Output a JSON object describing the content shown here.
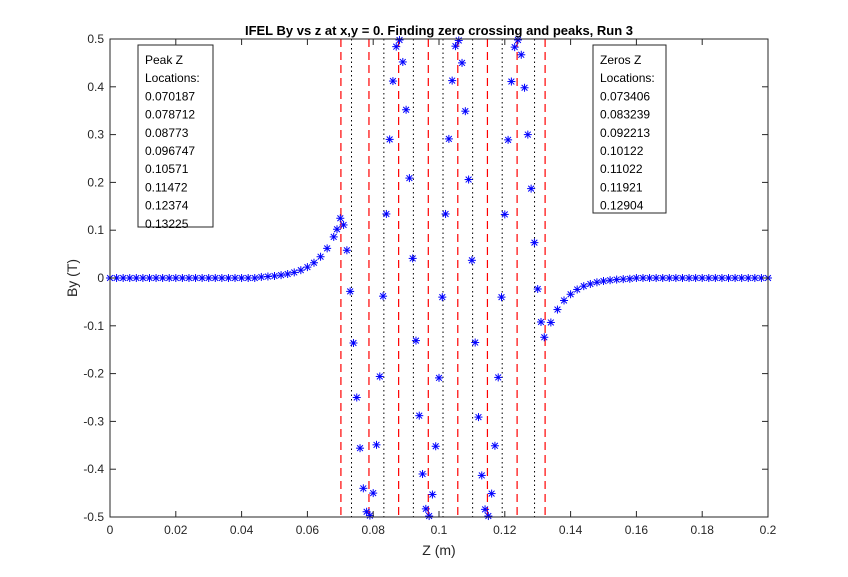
{
  "chart_data": {
    "type": "scatter",
    "title": "IFEL By vs z at x,y = 0.  Finding zero crossing and peaks, Run 3",
    "xlabel": "Z (m)",
    "ylabel": "By (T)",
    "xlim": [
      0,
      0.2
    ],
    "ylim": [
      -0.5,
      0.5
    ],
    "grid": false,
    "xticks": [
      "0",
      "0.02",
      "0.04",
      "0.06",
      "0.08",
      "0.1",
      "0.12",
      "0.14",
      "0.16",
      "0.18",
      "0.2"
    ],
    "yticks": [
      "-0.5",
      "-0.4",
      "-0.3",
      "-0.2",
      "-0.1",
      "0",
      "0.1",
      "0.2",
      "0.3",
      "0.4",
      "0.5"
    ],
    "series": [
      {
        "name": "By",
        "marker": "asterisk",
        "color": "#0000ff",
        "x": [
          0,
          0.002,
          0.004,
          0.006,
          0.008,
          0.01,
          0.012,
          0.014,
          0.016,
          0.018,
          0.02,
          0.022,
          0.024,
          0.026,
          0.028,
          0.03,
          0.032,
          0.034,
          0.036,
          0.038,
          0.04,
          0.042,
          0.044,
          0.046,
          0.048,
          0.05,
          0.052,
          0.054,
          0.056,
          0.058,
          0.06,
          0.062,
          0.064,
          0.066,
          0.068,
          0.069,
          0.07,
          0.071,
          0.072,
          0.073,
          0.074,
          0.075,
          0.076,
          0.077,
          0.078,
          0.079,
          0.08,
          0.081,
          0.082,
          0.083,
          0.084,
          0.085,
          0.086,
          0.087,
          0.088,
          0.089,
          0.09,
          0.091,
          0.092,
          0.093,
          0.094,
          0.095,
          0.096,
          0.097,
          0.098,
          0.099,
          0.1,
          0.101,
          0.102,
          0.103,
          0.104,
          0.105,
          0.106,
          0.107,
          0.108,
          0.109,
          0.11,
          0.111,
          0.112,
          0.113,
          0.114,
          0.115,
          0.116,
          0.117,
          0.118,
          0.119,
          0.12,
          0.121,
          0.122,
          0.123,
          0.124,
          0.125,
          0.126,
          0.127,
          0.128,
          0.129,
          0.13,
          0.131,
          0.132,
          0.134,
          0.136,
          0.138,
          0.14,
          0.142,
          0.144,
          0.146,
          0.148,
          0.15,
          0.152,
          0.154,
          0.156,
          0.158,
          0.16,
          0.162,
          0.164,
          0.166,
          0.168,
          0.17,
          0.172,
          0.174,
          0.176,
          0.178,
          0.18,
          0.182,
          0.184,
          0.186,
          0.188,
          0.19,
          0.192,
          0.194,
          0.196,
          0.198,
          0.2
        ],
        "y": [
          0,
          0,
          0,
          0,
          0,
          0,
          0,
          0,
          0,
          0,
          0,
          0,
          0,
          0,
          0,
          0,
          0,
          0,
          0,
          0,
          0,
          0,
          0,
          0.0022,
          0.0031,
          0.0043,
          0.006,
          0.0084,
          0.0117,
          0.0164,
          0.0228,
          0.0319,
          0.0445,
          0.062,
          0.086,
          0.102,
          0.125,
          0.111,
          0.058,
          -0.028,
          -0.136,
          -0.25,
          -0.356,
          -0.44,
          -0.489,
          -0.497,
          -0.45,
          -0.349,
          -0.206,
          -0.038,
          0.134,
          0.29,
          0.412,
          0.484,
          0.498,
          0.452,
          0.352,
          0.209,
          0.041,
          -0.131,
          -0.288,
          -0.41,
          -0.483,
          -0.498,
          -0.453,
          -0.352,
          -0.209,
          -0.04,
          0.134,
          0.291,
          0.413,
          0.485,
          0.497,
          0.45,
          0.349,
          0.206,
          0.037,
          -0.135,
          -0.291,
          -0.413,
          -0.484,
          -0.498,
          -0.451,
          -0.351,
          -0.208,
          -0.04,
          0.133,
          0.289,
          0.411,
          0.483,
          0.498,
          0.467,
          0.398,
          0.3,
          0.187,
          0.074,
          -0.023,
          -0.092,
          -0.124,
          -0.093,
          -0.066,
          -0.047,
          -0.034,
          -0.024,
          -0.017,
          -0.0125,
          -0.009,
          -0.0064,
          -0.0046,
          -0.0033,
          -0.0023,
          -0.0017,
          0,
          0,
          0,
          0,
          0,
          0,
          0,
          0,
          0,
          0,
          0,
          0,
          0,
          0,
          0,
          0,
          0,
          0,
          0,
          0,
          0
        ]
      }
    ],
    "peak_lines": {
      "style": "dashed",
      "color": "#ff0000",
      "x": [
        0.070187,
        0.078712,
        0.08773,
        0.096747,
        0.10571,
        0.11472,
        0.12374,
        0.13225
      ]
    },
    "zero_lines": {
      "style": "dotted",
      "color": "#000000",
      "x": [
        0.073406,
        0.083239,
        0.092213,
        0.10122,
        0.11022,
        0.11921,
        0.12904
      ]
    },
    "annotations": {
      "peaks": {
        "lines": [
          "Peak Z",
          "Locations:",
          "0.070187",
          "0.078712",
          "0.08773",
          "0.096747",
          "0.10571",
          "0.11472",
          "0.12374",
          "0.13225"
        ]
      },
      "zeros": {
        "lines": [
          "Zeros Z",
          "Locations:",
          "0.073406",
          "0.083239",
          "0.092213",
          "0.10122",
          "0.11022",
          "0.11921",
          "0.12904"
        ]
      }
    }
  }
}
